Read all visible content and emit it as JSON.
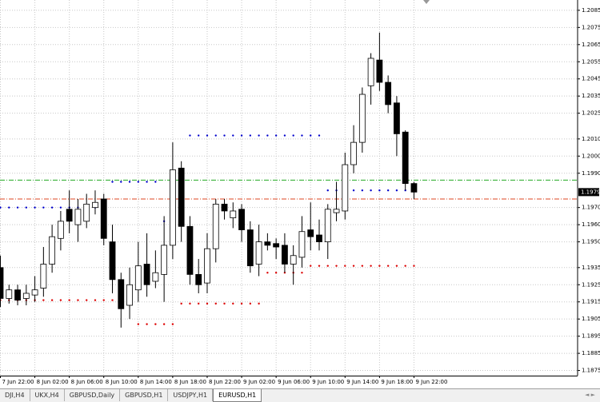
{
  "chart_data": {
    "type": "candlestick",
    "categories": [
      "7 Jun 22:00",
      null,
      null,
      null,
      "8 Jun 02:00",
      null,
      null,
      null,
      "8 Jun 06:00",
      null,
      null,
      null,
      "8 Jun 10:00",
      null,
      null,
      null,
      "8 Jun 14:00",
      null,
      null,
      null,
      "8 Jun 18:00",
      null,
      null,
      null,
      "8 Jun 22:00",
      null,
      null,
      null,
      "9 Jun 02:00",
      null,
      null,
      null,
      "9 Jun 06:00",
      null,
      null,
      null,
      "9 Jun 10:00",
      null,
      null,
      null,
      "9 Jun 14:00",
      null,
      null,
      null,
      "9 Jun 18:00",
      null,
      null,
      null,
      "9 Jun 22:00"
    ],
    "open": [
      1.1935,
      1.1917,
      1.1922,
      1.1917,
      1.1919,
      1.1923,
      1.1937,
      1.1952,
      1.1969,
      1.196,
      1.1962,
      1.197,
      1.1975,
      1.195,
      1.1928,
      1.1913,
      1.1922,
      1.1937,
      1.1927,
      1.1931,
      1.1948,
      1.1993,
      1.1959,
      1.1931,
      1.1926,
      1.1946,
      1.1972,
      1.1964,
      1.1969,
      1.1957,
      1.1937,
      1.195,
      1.1949,
      1.1948,
      1.1937,
      1.1941,
      1.1957,
      1.1954,
      1.195,
      1.1967,
      1.1968,
      1.1995,
      1.2008,
      1.2041,
      1.2056,
      1.2043,
      1.2031,
      1.2014,
      1.1984
    ],
    "high": [
      1.1942,
      1.1925,
      1.1925,
      1.1925,
      1.193,
      1.1947,
      1.196,
      1.1968,
      1.198,
      1.1975,
      1.1978,
      1.198,
      1.1978,
      1.196,
      1.1932,
      1.1935,
      1.195,
      1.1955,
      1.1945,
      1.1965,
      1.2008,
      1.1997,
      1.1965,
      1.194,
      1.1955,
      1.1975,
      1.1975,
      1.1973,
      1.1972,
      1.1962,
      1.196,
      1.1955,
      1.1952,
      1.1955,
      1.1948,
      1.1965,
      1.1973,
      1.1963,
      1.1972,
      1.1985,
      1.2002,
      1.2018,
      1.204,
      1.206,
      1.2072,
      1.2047,
      1.2035,
      1.2015,
      1.1985
    ],
    "low": [
      1.1912,
      1.1914,
      1.1913,
      1.1913,
      1.1915,
      1.1918,
      1.1932,
      1.1945,
      1.1955,
      1.195,
      1.1958,
      1.1966,
      1.1948,
      1.192,
      1.19,
      1.1905,
      1.1915,
      1.1918,
      1.1923,
      1.1915,
      1.194,
      1.195,
      1.1925,
      1.192,
      1.192,
      1.1938,
      1.1963,
      1.1958,
      1.195,
      1.1932,
      1.193,
      1.1945,
      1.194,
      1.1932,
      1.1925,
      1.1935,
      1.1945,
      1.1945,
      1.194,
      1.1962,
      1.1963,
      1.199,
      1.2002,
      1.203,
      1.2038,
      1.2025,
      1.2,
      1.198,
      1.1975
    ],
    "close": [
      1.1917,
      1.1922,
      1.1916,
      1.192,
      1.1922,
      1.1937,
      1.1953,
      1.1962,
      1.1962,
      1.1969,
      1.1972,
      1.1973,
      1.1952,
      1.1928,
      1.1911,
      1.1925,
      1.1936,
      1.1925,
      1.1932,
      1.1948,
      1.1992,
      1.1959,
      1.1931,
      1.1925,
      1.1946,
      1.1972,
      1.1968,
      1.1968,
      1.1957,
      1.1936,
      1.195,
      1.1948,
      1.1947,
      1.1937,
      1.1942,
      1.1956,
      1.1953,
      1.195,
      1.1969,
      1.1969,
      1.1995,
      1.2008,
      1.2036,
      1.2057,
      1.2043,
      1.203,
      1.2013,
      1.1984,
      1.1979
    ],
    "dots": [
      {
        "color": "#0000cc",
        "values": [
          1.197,
          1.197,
          1.197,
          1.197,
          1.197,
          1.197,
          1.197,
          1.197,
          1.197,
          1.197,
          1.197,
          1.197,
          1.197,
          1.1985,
          1.1985,
          1.1985,
          1.1985,
          1.1985,
          1.1985,
          1.1962,
          1.1962,
          1.1962,
          1.2012,
          1.2012,
          1.2012,
          1.2012,
          1.2012,
          1.2012,
          1.2012,
          1.2012,
          1.2012,
          1.2012,
          1.2012,
          1.2012,
          1.2012,
          1.2012,
          1.2012,
          1.2012,
          1.198,
          1.198,
          1.198,
          1.198,
          1.198,
          1.198,
          1.198,
          1.198,
          1.198,
          1.198,
          null
        ]
      },
      {
        "color": "#dd0000",
        "values": [
          1.1916,
          1.1916,
          1.1916,
          1.1916,
          1.1916,
          1.1916,
          1.1916,
          1.1916,
          1.1916,
          1.1916,
          1.1916,
          1.1916,
          1.1916,
          1.1916,
          1.1916,
          1.1916,
          1.1902,
          1.1902,
          1.1902,
          1.1902,
          1.1902,
          1.1914,
          1.1914,
          1.1914,
          1.1914,
          1.1914,
          1.1914,
          1.1914,
          1.1914,
          1.1914,
          1.1914,
          1.1932,
          1.1932,
          1.1932,
          1.1932,
          1.1932,
          1.1936,
          1.1936,
          1.1936,
          1.1936,
          1.1936,
          1.1936,
          1.1936,
          1.1936,
          1.1936,
          1.1936,
          1.1936,
          1.1936,
          1.1936
        ]
      }
    ],
    "hlines": [
      {
        "value": 1.1986,
        "color": "#22aa22"
      },
      {
        "value": 1.1975,
        "color": "#dd4422"
      }
    ],
    "current_price": 1.1979,
    "ylim": [
      1.1872,
      1.2091
    ],
    "yticks": [
      1.2085,
      1.2075,
      1.2065,
      1.2055,
      1.2045,
      1.2035,
      1.2025,
      {
        "value": 1.201,
        "label": "1.2010"
      },
      {
        "value": 1.2,
        "label": "1.2000"
      },
      {
        "value": 1.199,
        "label": "1.1990"
      },
      {
        "value": 1.197,
        "label": "1.1970"
      },
      {
        "value": 1.196,
        "label": "1.1960"
      },
      {
        "value": 1.195,
        "label": "1.1950"
      },
      1.1935,
      1.1925,
      1.1915,
      1.1905,
      1.1895,
      1.1885,
      1.1875
    ],
    "grid": true
  },
  "tabs": {
    "items": [
      "DJI,H4",
      "UKX,H4",
      "GBPUSD,Daily",
      "GBPUSD,H1",
      "USDJPY,H1",
      "EURUSD,H1"
    ],
    "active": 5
  }
}
